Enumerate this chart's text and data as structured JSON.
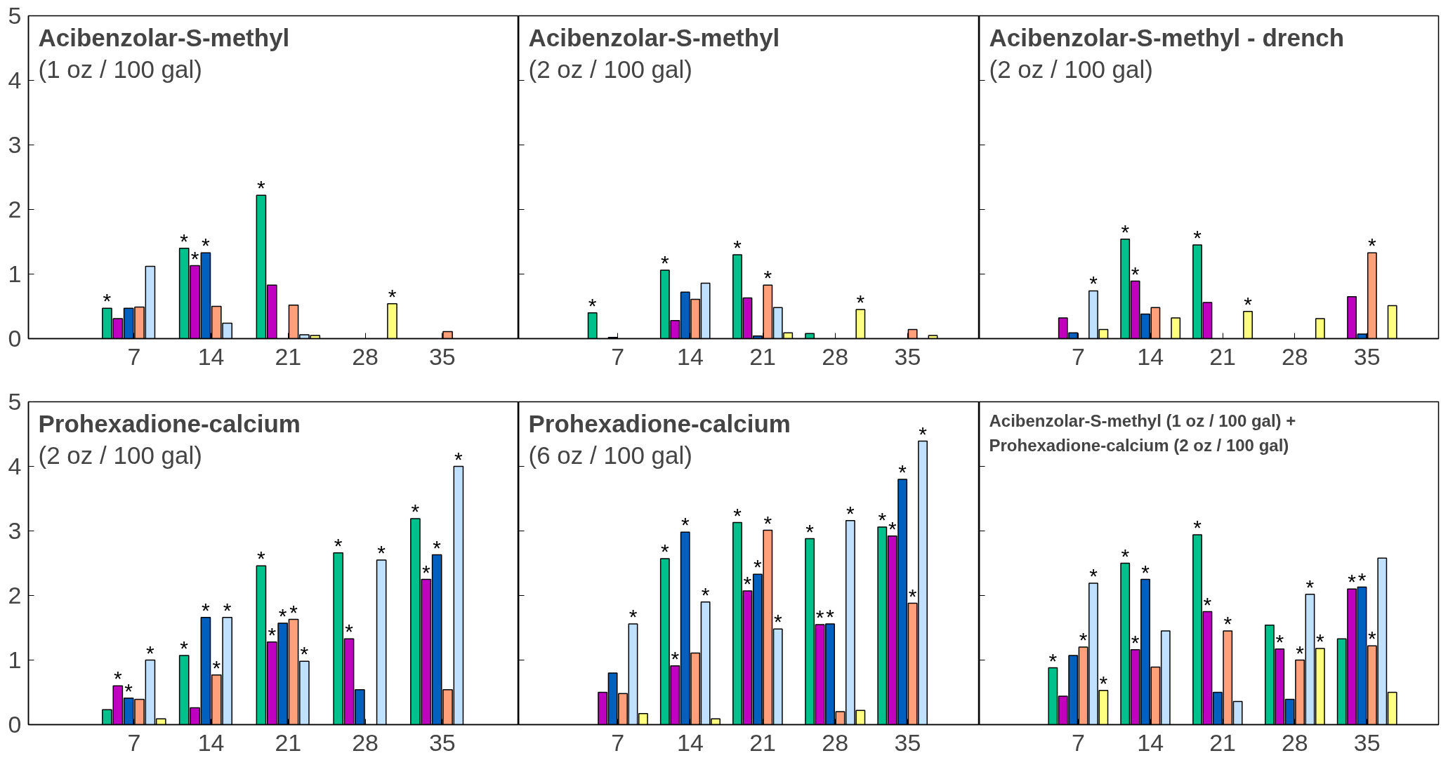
{
  "chart_data": [
    {
      "type": "bar",
      "title": "Acibenzolar-S-methyl",
      "subtitle": "(1 oz / 100 gal)",
      "categories": [
        "7",
        "14",
        "21",
        "28",
        "35"
      ],
      "ylim": [
        0,
        5
      ],
      "yticks": [
        0,
        1,
        2,
        3,
        4,
        5
      ],
      "series": [
        {
          "color": "#00c08b",
          "values": [
            0.47,
            1.4,
            2.22,
            null,
            null
          ],
          "value_labels": [
            "*",
            "*",
            "*",
            null,
            null
          ]
        },
        {
          "color": "#c000c0",
          "values": [
            0.31,
            1.13,
            0.83,
            null,
            null
          ],
          "value_labels": [
            null,
            "*",
            null,
            null,
            null
          ]
        },
        {
          "color": "#0060c0",
          "values": [
            0.47,
            1.33,
            null,
            null,
            null
          ],
          "value_labels": [
            null,
            "*",
            null,
            null,
            null
          ]
        },
        {
          "color": "#ffa07a",
          "values": [
            0.49,
            0.5,
            0.52,
            null,
            0.11
          ],
          "value_labels": [
            null,
            null,
            null,
            null,
            null
          ]
        },
        {
          "color": "#c0e0ff",
          "values": [
            1.12,
            0.24,
            0.06,
            null,
            null
          ],
          "value_labels": [
            null,
            null,
            null,
            null,
            null
          ]
        },
        {
          "color": "#ffff80",
          "values": [
            null,
            null,
            0.05,
            0.54,
            null
          ],
          "value_labels": [
            null,
            null,
            null,
            "*",
            null
          ]
        }
      ]
    },
    {
      "type": "bar",
      "title": "Acibenzolar-S-methyl",
      "subtitle": "(2 oz / 100 gal)",
      "categories": [
        "7",
        "14",
        "21",
        "28",
        "35"
      ],
      "ylim": [
        0,
        5
      ],
      "yticks": [
        0,
        1,
        2,
        3,
        4,
        5
      ],
      "tick_labels": "x",
      "series": [
        {
          "color": "#00c08b",
          "values": [
            0.4,
            1.06,
            1.3,
            0.08,
            null
          ],
          "value_labels": [
            "*",
            "*",
            "*",
            null,
            null
          ]
        },
        {
          "color": "#c000c0",
          "values": [
            null,
            0.28,
            0.63,
            null,
            null
          ],
          "value_labels": [
            null,
            null,
            null,
            null,
            null
          ]
        },
        {
          "color": "#0060c0",
          "values": [
            0.02,
            0.72,
            0.04,
            null,
            null
          ],
          "value_labels": [
            null,
            null,
            null,
            null,
            null
          ]
        },
        {
          "color": "#ffa07a",
          "values": [
            null,
            0.61,
            0.83,
            null,
            0.14
          ],
          "value_labels": [
            null,
            null,
            "*",
            null,
            null
          ]
        },
        {
          "color": "#c0e0ff",
          "values": [
            null,
            0.86,
            0.48,
            null,
            null
          ],
          "value_labels": [
            null,
            null,
            null,
            null,
            null
          ]
        },
        {
          "color": "#ffff80",
          "values": [
            null,
            null,
            0.09,
            0.45,
            0.05
          ],
          "value_labels": [
            null,
            null,
            null,
            "*",
            null
          ]
        }
      ]
    },
    {
      "type": "bar",
      "title": "Acibenzolar-S-methyl - drench",
      "subtitle": "(2 oz / 100 gal)",
      "categories": [
        "7",
        "14",
        "21",
        "28",
        "35"
      ],
      "ylim": [
        0,
        5
      ],
      "yticks": [
        0,
        1,
        2,
        3,
        4,
        5
      ],
      "tick_labels": "x",
      "series": [
        {
          "color": "#00c08b",
          "values": [
            null,
            1.54,
            1.45,
            null,
            null
          ],
          "value_labels": [
            null,
            "*",
            "*",
            null,
            null
          ]
        },
        {
          "color": "#c000c0",
          "values": [
            0.32,
            0.89,
            0.56,
            null,
            0.65
          ],
          "value_labels": [
            null,
            "*",
            null,
            null,
            null
          ]
        },
        {
          "color": "#0060c0",
          "values": [
            0.09,
            0.38,
            null,
            null,
            0.07
          ],
          "value_labels": [
            null,
            null,
            null,
            null,
            null
          ]
        },
        {
          "color": "#ffa07a",
          "values": [
            null,
            0.48,
            null,
            null,
            1.33
          ],
          "value_labels": [
            null,
            null,
            null,
            null,
            "*"
          ]
        },
        {
          "color": "#c0e0ff",
          "values": [
            0.74,
            null,
            null,
            null,
            null
          ],
          "value_labels": [
            "*",
            null,
            null,
            null,
            null
          ]
        },
        {
          "color": "#ffff80",
          "values": [
            0.14,
            0.32,
            0.42,
            0.31,
            0.51
          ],
          "value_labels": [
            null,
            null,
            "*",
            null,
            null
          ]
        }
      ]
    },
    {
      "type": "bar",
      "title": "Prohexadione-calcium",
      "subtitle": "(2 oz / 100 gal)",
      "categories": [
        "7",
        "14",
        "21",
        "28",
        "35"
      ],
      "ylim": [
        0,
        5
      ],
      "yticks": [
        0,
        1,
        2,
        3,
        4,
        5
      ],
      "series": [
        {
          "color": "#00c08b",
          "values": [
            0.23,
            1.07,
            2.46,
            2.66,
            3.19
          ],
          "value_labels": [
            null,
            "*",
            "*",
            "*",
            "*"
          ]
        },
        {
          "color": "#c000c0",
          "values": [
            0.6,
            0.26,
            1.28,
            1.33,
            2.25
          ],
          "value_labels": [
            "*",
            null,
            "*",
            "*",
            "*"
          ]
        },
        {
          "color": "#0060c0",
          "values": [
            0.41,
            1.66,
            1.57,
            0.54,
            2.63
          ],
          "value_labels": [
            "*",
            "*",
            "*",
            null,
            "*"
          ]
        },
        {
          "color": "#ffa07a",
          "values": [
            0.39,
            0.77,
            1.63,
            null,
            0.54
          ],
          "value_labels": [
            null,
            "*",
            "*",
            null,
            null
          ]
        },
        {
          "color": "#c0e0ff",
          "values": [
            1.0,
            1.66,
            0.98,
            2.55,
            4.0
          ],
          "value_labels": [
            "*",
            "*",
            "*",
            "*",
            "*"
          ]
        },
        {
          "color": "#ffff80",
          "values": [
            0.09,
            null,
            null,
            null,
            null
          ],
          "value_labels": [
            null,
            null,
            null,
            null,
            null
          ]
        }
      ]
    },
    {
      "type": "bar",
      "title": "Prohexadione-calcium",
      "subtitle": "(6 oz / 100 gal)",
      "categories": [
        "7",
        "14",
        "21",
        "28",
        "35"
      ],
      "ylim": [
        0,
        5
      ],
      "yticks": [
        0,
        1,
        2,
        3,
        4,
        5
      ],
      "tick_labels": "x",
      "series": [
        {
          "color": "#00c08b",
          "values": [
            null,
            2.57,
            3.13,
            2.88,
            3.06
          ],
          "value_labels": [
            null,
            "*",
            "*",
            "*",
            "*"
          ]
        },
        {
          "color": "#c000c0",
          "values": [
            0.5,
            0.91,
            2.07,
            1.55,
            2.92
          ],
          "value_labels": [
            null,
            "*",
            "*",
            "*",
            "*"
          ]
        },
        {
          "color": "#0060c0",
          "values": [
            0.8,
            2.98,
            2.33,
            1.56,
            3.8
          ],
          "value_labels": [
            null,
            "*",
            "*",
            "*",
            "*"
          ]
        },
        {
          "color": "#ffa07a",
          "values": [
            0.48,
            1.11,
            3.01,
            0.2,
            1.88
          ],
          "value_labels": [
            null,
            null,
            "*",
            null,
            "*"
          ]
        },
        {
          "color": "#c0e0ff",
          "values": [
            1.56,
            1.9,
            1.48,
            3.16,
            4.39
          ],
          "value_labels": [
            "*",
            "*",
            "*",
            "*",
            "*"
          ]
        },
        {
          "color": "#ffff80",
          "values": [
            0.17,
            0.09,
            null,
            0.22,
            null
          ],
          "value_labels": [
            null,
            null,
            null,
            null,
            null
          ]
        }
      ]
    },
    {
      "type": "bar",
      "title": "Acibenzolar-S-methyl (1 oz / 100 gal) +",
      "subtitle": "Prohexadione-calcium (2 oz / 100 gal)",
      "categories": [
        "7",
        "14",
        "21",
        "28",
        "35"
      ],
      "ylim": [
        0,
        5
      ],
      "yticks": [
        0,
        1,
        2,
        3,
        4,
        5
      ],
      "tick_labels": "x",
      "series": [
        {
          "color": "#00c08b",
          "values": [
            0.88,
            2.5,
            2.94,
            1.54,
            1.33
          ],
          "value_labels": [
            "*",
            "*",
            "*",
            null,
            null
          ]
        },
        {
          "color": "#c000c0",
          "values": [
            0.44,
            1.16,
            1.75,
            1.17,
            2.1
          ],
          "value_labels": [
            null,
            "*",
            "*",
            "*",
            "*"
          ]
        },
        {
          "color": "#0060c0",
          "values": [
            1.07,
            2.25,
            0.5,
            0.39,
            2.13
          ],
          "value_labels": [
            null,
            "*",
            null,
            null,
            "*"
          ]
        },
        {
          "color": "#ffa07a",
          "values": [
            1.2,
            0.89,
            1.45,
            1.0,
            1.22
          ],
          "value_labels": [
            "*",
            null,
            "*",
            "*",
            "*"
          ]
        },
        {
          "color": "#c0e0ff",
          "values": [
            2.19,
            1.45,
            0.36,
            2.02,
            2.58
          ],
          "value_labels": [
            "*",
            null,
            null,
            "*",
            null
          ]
        },
        {
          "color": "#ffff80",
          "values": [
            0.53,
            null,
            null,
            1.18,
            0.5
          ],
          "value_labels": [
            "*",
            null,
            null,
            "*",
            null
          ]
        }
      ]
    }
  ]
}
